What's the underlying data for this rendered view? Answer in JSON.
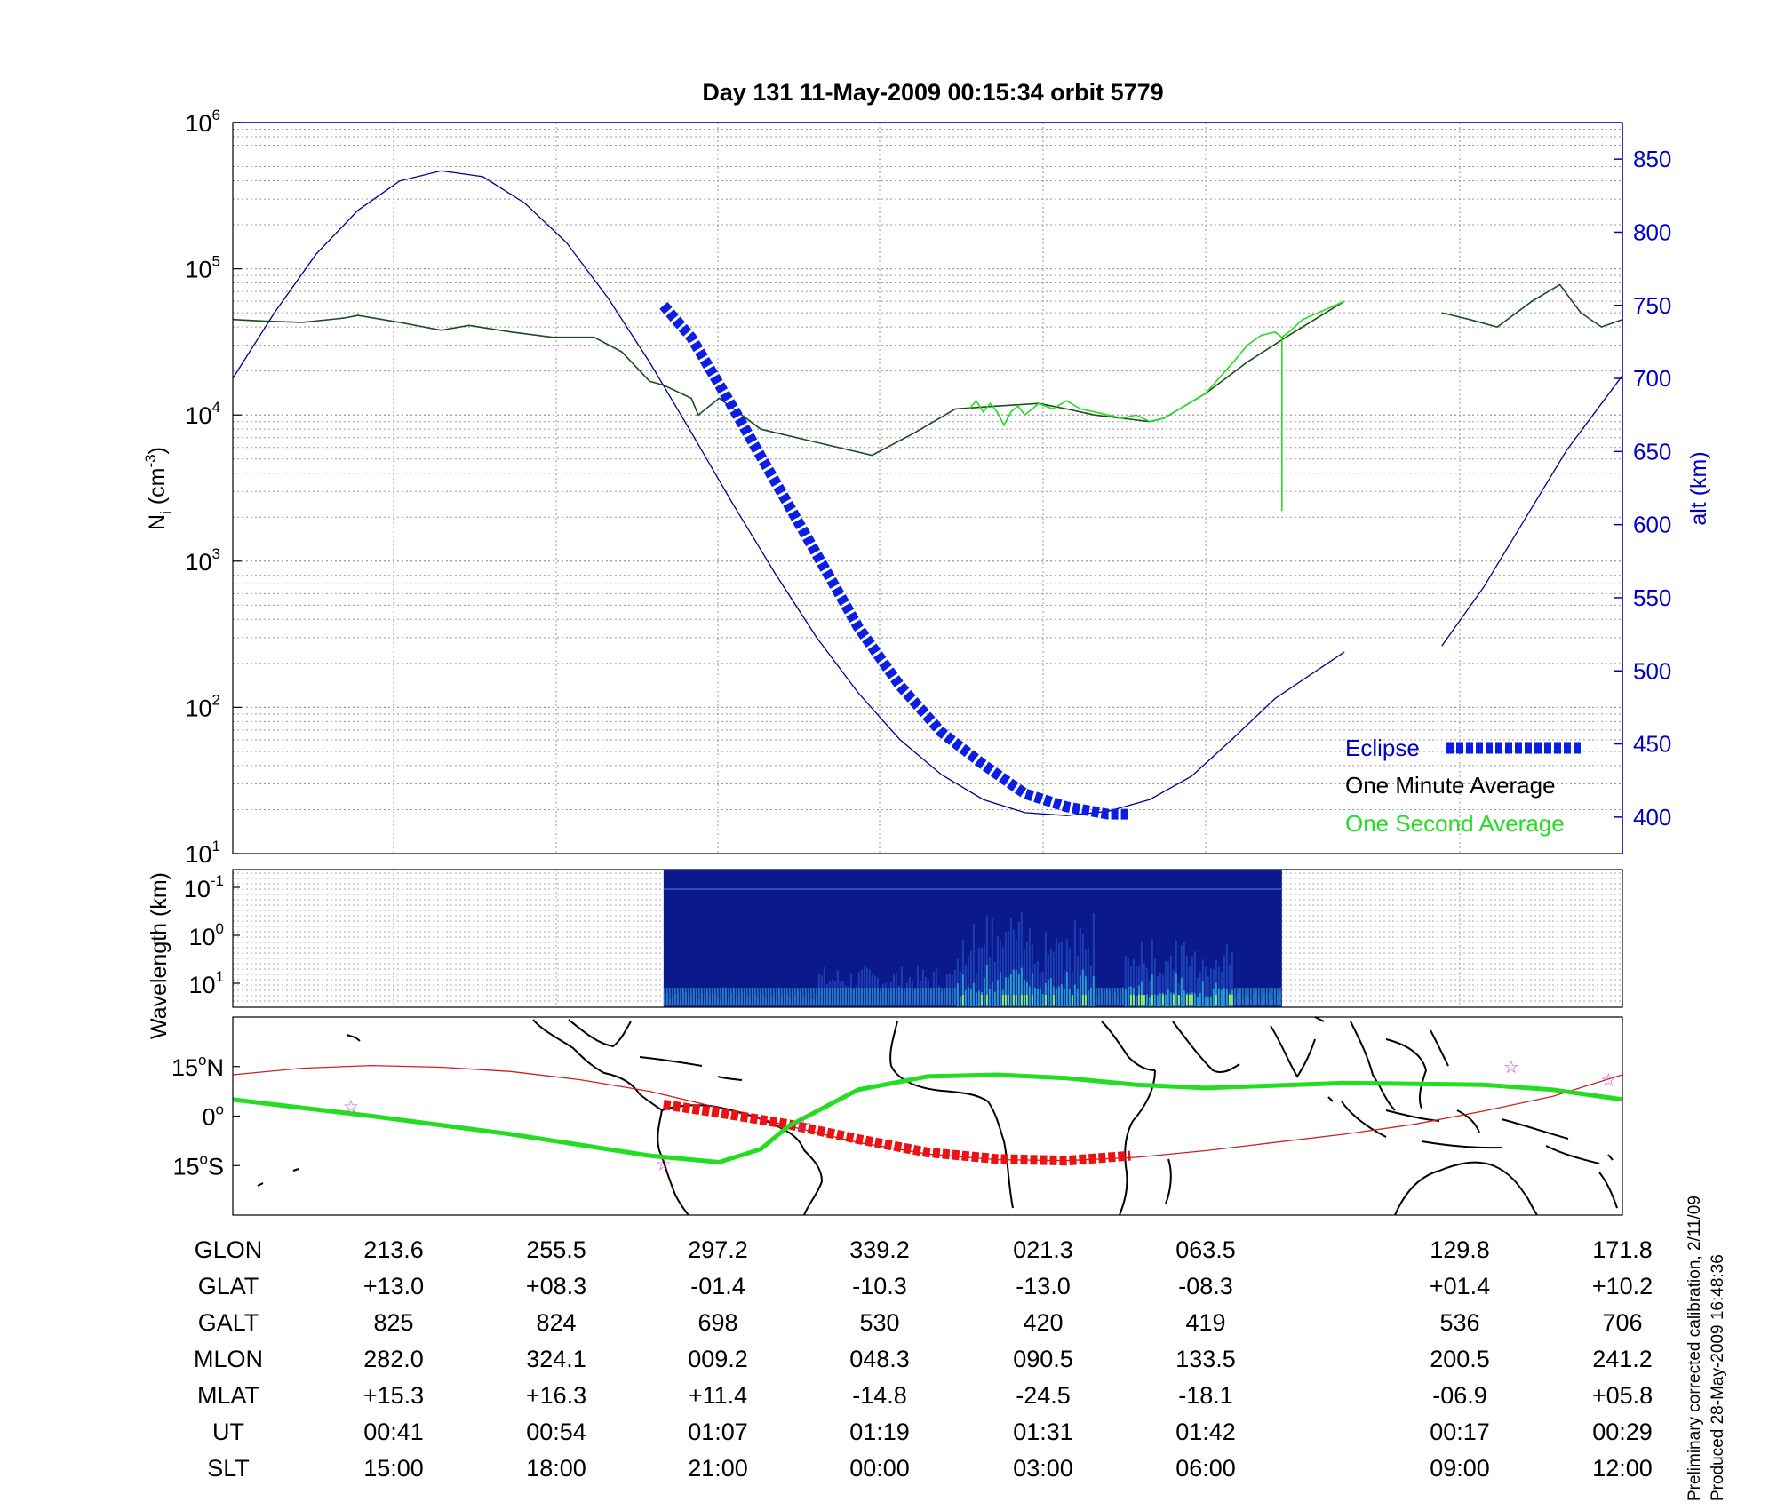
{
  "title": "Day 131  11-May-2009 00:15:34   orbit 5779",
  "colors": {
    "altitude": "#00008b",
    "one_minute": "#1a4d1a",
    "one_second": "#22dd22",
    "eclipse": "#0a1ee6",
    "track": "#cc2222",
    "eclipse_track": "#ee1111",
    "dipequator": "#22dd22",
    "spectrogram_bg": "#0a1a8c",
    "star": "#cc44cc"
  },
  "chart_data": [
    {
      "type": "line",
      "panel": "ion-density-and-altitude",
      "title": "Day 131  11-May-2009 00:15:34   orbit 5779",
      "ylabel_left": "N",
      "ylabel_left_sub": "i",
      "ylabel_left_unit_pre": "(cm",
      "ylabel_left_unit_exp": "-3",
      "ylabel_left_unit_post": ")",
      "yscale_left": "log",
      "ylim_left": [
        10,
        1000000
      ],
      "ytick_labels_left": [
        {
          "base": "10",
          "exp": "1"
        },
        {
          "base": "10",
          "exp": "2"
        },
        {
          "base": "10",
          "exp": "3"
        },
        {
          "base": "10",
          "exp": "4"
        },
        {
          "base": "10",
          "exp": "5"
        },
        {
          "base": "10",
          "exp": "6"
        }
      ],
      "ylabel_right": "alt (km)",
      "ylim_right": [
        375,
        875
      ],
      "yticks_right": [
        "400",
        "450",
        "500",
        "550",
        "600",
        "650",
        "700",
        "750",
        "800",
        "850"
      ],
      "grid": true,
      "legend": {
        "position": "bottom-right",
        "entries": [
          {
            "label": "Eclipse",
            "color": "#0a1ee6"
          },
          {
            "label": "One Minute Average",
            "color": "#000000"
          },
          {
            "label": "One Second Average",
            "color": "#22dd22"
          }
        ]
      },
      "series": [
        {
          "name": "One Minute Average",
          "axis": "left",
          "x": [
            0,
            0.02,
            0.05,
            0.08,
            0.09,
            0.12,
            0.15,
            0.17,
            0.2,
            0.23,
            0.26,
            0.28,
            0.3,
            0.31,
            0.33,
            0.335,
            0.35,
            0.38,
            0.42,
            0.46,
            0.49,
            0.52,
            0.55,
            0.58,
            0.6,
            0.62,
            0.64,
            0.66,
            0.67,
            0.7,
            0.73,
            0.76,
            0.8
          ],
          "y": [
            45000,
            44000,
            43000,
            46000,
            48000,
            43000,
            38000,
            41000,
            37000,
            34000,
            34000,
            27000,
            17000,
            16000,
            13000,
            10000,
            13000,
            8000,
            6500,
            5300,
            7500,
            11000,
            11500,
            12000,
            11000,
            10000,
            9500,
            9000,
            9500,
            14000,
            23000,
            35000,
            60000
          ]
        },
        {
          "name": "One Minute Average",
          "axis": "left",
          "x": [
            0.87,
            0.89,
            0.91,
            0.935,
            0.955,
            0.97,
            0.985,
            1.0
          ],
          "y": [
            50000,
            45000,
            40000,
            60000,
            78000,
            50000,
            40000,
            45000
          ]
        },
        {
          "name": "One Second Average",
          "axis": "left",
          "x": [
            0.53,
            0.535,
            0.54,
            0.545,
            0.55,
            0.555,
            0.56,
            0.565,
            0.57,
            0.58,
            0.59,
            0.6,
            0.61,
            0.62,
            0.64,
            0.65,
            0.66,
            0.67,
            0.7,
            0.72,
            0.73,
            0.74,
            0.75,
            0.755,
            0.755,
            0.755,
            0.76,
            0.77,
            0.8
          ],
          "y": [
            11000,
            12500,
            10500,
            12000,
            10500,
            8500,
            10500,
            11500,
            10000,
            12000,
            11000,
            12500,
            11000,
            10500,
            9500,
            10000,
            9000,
            9500,
            14000,
            23000,
            30000,
            35000,
            37000,
            34000,
            2200,
            34000,
            37000,
            45000,
            60000
          ]
        },
        {
          "name": "altitude",
          "axis": "right",
          "x": [
            0,
            0.03,
            0.06,
            0.09,
            0.12,
            0.15,
            0.18,
            0.21,
            0.24,
            0.27,
            0.3,
            0.33,
            0.36,
            0.39,
            0.42,
            0.45,
            0.48,
            0.51,
            0.54,
            0.57,
            0.6,
            0.63,
            0.66,
            0.69,
            0.72,
            0.75,
            0.8
          ],
          "y": [
            700,
            745,
            785,
            815,
            835,
            842,
            838,
            820,
            793,
            755,
            711,
            663,
            614,
            567,
            523,
            485,
            453,
            429,
            412,
            403,
            401,
            404,
            412,
            428,
            454,
            481,
            513
          ]
        },
        {
          "name": "altitude",
          "axis": "right",
          "x": [
            0.87,
            0.9,
            0.93,
            0.96,
            1.0
          ],
          "y": [
            517,
            557,
            604,
            651,
            702
          ]
        },
        {
          "name": "Eclipse",
          "axis": "right",
          "x": [
            0.31,
            0.33,
            0.36,
            0.39,
            0.42,
            0.45,
            0.48,
            0.51,
            0.54,
            0.57,
            0.6,
            0.63,
            0.646
          ],
          "y": [
            750,
            728,
            680,
            630,
            580,
            530,
            490,
            458,
            436,
            416,
            407,
            402,
            402
          ]
        }
      ]
    },
    {
      "type": "heatmap",
      "panel": "spectrogram",
      "ylabel": "Wavelength (km)",
      "yscale": "log",
      "ytick_labels": [
        {
          "base": "10",
          "exp": "-1"
        },
        {
          "base": "10",
          "exp": "0"
        },
        {
          "base": "10",
          "exp": "1"
        }
      ],
      "x_range": [
        0.31,
        0.755
      ],
      "grid": true
    },
    {
      "type": "scatter",
      "panel": "orbit-map",
      "ytick_labels": [
        {
          "num": "15",
          "sym": "o",
          "dir": "N"
        },
        {
          "num": "0",
          "sym": "o",
          "dir": ""
        },
        {
          "num": "15",
          "sym": "o",
          "dir": "S"
        }
      ],
      "lat_range": [
        -30,
        30
      ],
      "series": [
        {
          "name": "orbit track",
          "x": [
            0,
            0.05,
            0.1,
            0.15,
            0.2,
            0.25,
            0.3,
            0.35,
            0.4,
            0.45,
            0.5,
            0.55,
            0.6,
            0.65,
            0.7,
            0.75,
            0.8,
            0.85,
            0.9,
            0.95,
            1.0
          ],
          "lat": [
            12.5,
            14.5,
            15.3,
            14.8,
            13.5,
            11.0,
            7.5,
            2.5,
            -3.0,
            -8.0,
            -11.5,
            -13.2,
            -13.5,
            -12.5,
            -10.5,
            -8.0,
            -5.5,
            -2.5,
            1.5,
            6.0,
            12.5
          ]
        },
        {
          "name": "eclipse track",
          "x": [
            0.31,
            0.35,
            0.4,
            0.45,
            0.5,
            0.55,
            0.6,
            0.646
          ],
          "lat": [
            3.5,
            1.0,
            -2.5,
            -7.0,
            -11.0,
            -13.0,
            -13.5,
            -12.0
          ]
        },
        {
          "name": "dip equator",
          "x": [
            0,
            0.1,
            0.2,
            0.3,
            0.35,
            0.38,
            0.4,
            0.45,
            0.5,
            0.55,
            0.6,
            0.65,
            0.7,
            0.8,
            0.9,
            0.95,
            1.0
          ],
          "lat": [
            5.0,
            0.0,
            -5.5,
            -12.0,
            -14.0,
            -10.0,
            -3.0,
            8.0,
            12.0,
            12.5,
            11.5,
            9.5,
            8.5,
            10.0,
            9.5,
            8.0,
            5.0
          ]
        }
      ],
      "stars": [
        {
          "x": 0.085,
          "lat": 3.0
        },
        {
          "x": 0.41,
          "lat": -2.5
        },
        {
          "x": 0.31,
          "lat": -14.5
        },
        {
          "x": 0.92,
          "lat": 15.0
        },
        {
          "x": 0.99,
          "lat": 11.0
        }
      ]
    }
  ],
  "table": {
    "row_labels": [
      "GLON",
      "GLAT",
      "GALT",
      "MLON",
      "MLAT",
      "UT",
      "SLT"
    ],
    "columns": [
      [
        "213.6",
        "+13.0",
        "825",
        "282.0",
        "+15.3",
        "00:41",
        "15:00"
      ],
      [
        "255.5",
        "+08.3",
        "824",
        "324.1",
        "+16.3",
        "00:54",
        "18:00"
      ],
      [
        "297.2",
        "-01.4",
        "698",
        "009.2",
        "+11.4",
        "01:07",
        "21:00"
      ],
      [
        "339.2",
        "-10.3",
        "530",
        "048.3",
        "-14.8",
        "01:19",
        "00:00"
      ],
      [
        "021.3",
        "-13.0",
        "420",
        "090.5",
        "-24.5",
        "01:31",
        "03:00"
      ],
      [
        "063.5",
        "-08.3",
        "419",
        "133.5",
        "-18.1",
        "01:42",
        "06:00"
      ],
      [
        "129.8",
        "+01.4",
        "536",
        "200.5",
        "-06.9",
        "00:17",
        "09:00"
      ],
      [
        "171.8",
        "+10.2",
        "706",
        "241.2",
        "+05.8",
        "00:29",
        "12:00"
      ]
    ]
  },
  "footer_note": {
    "line1": "Preliminary corrected calibration, 2/11/09",
    "line2": "Produced 28-May-2009 16:48:36"
  }
}
